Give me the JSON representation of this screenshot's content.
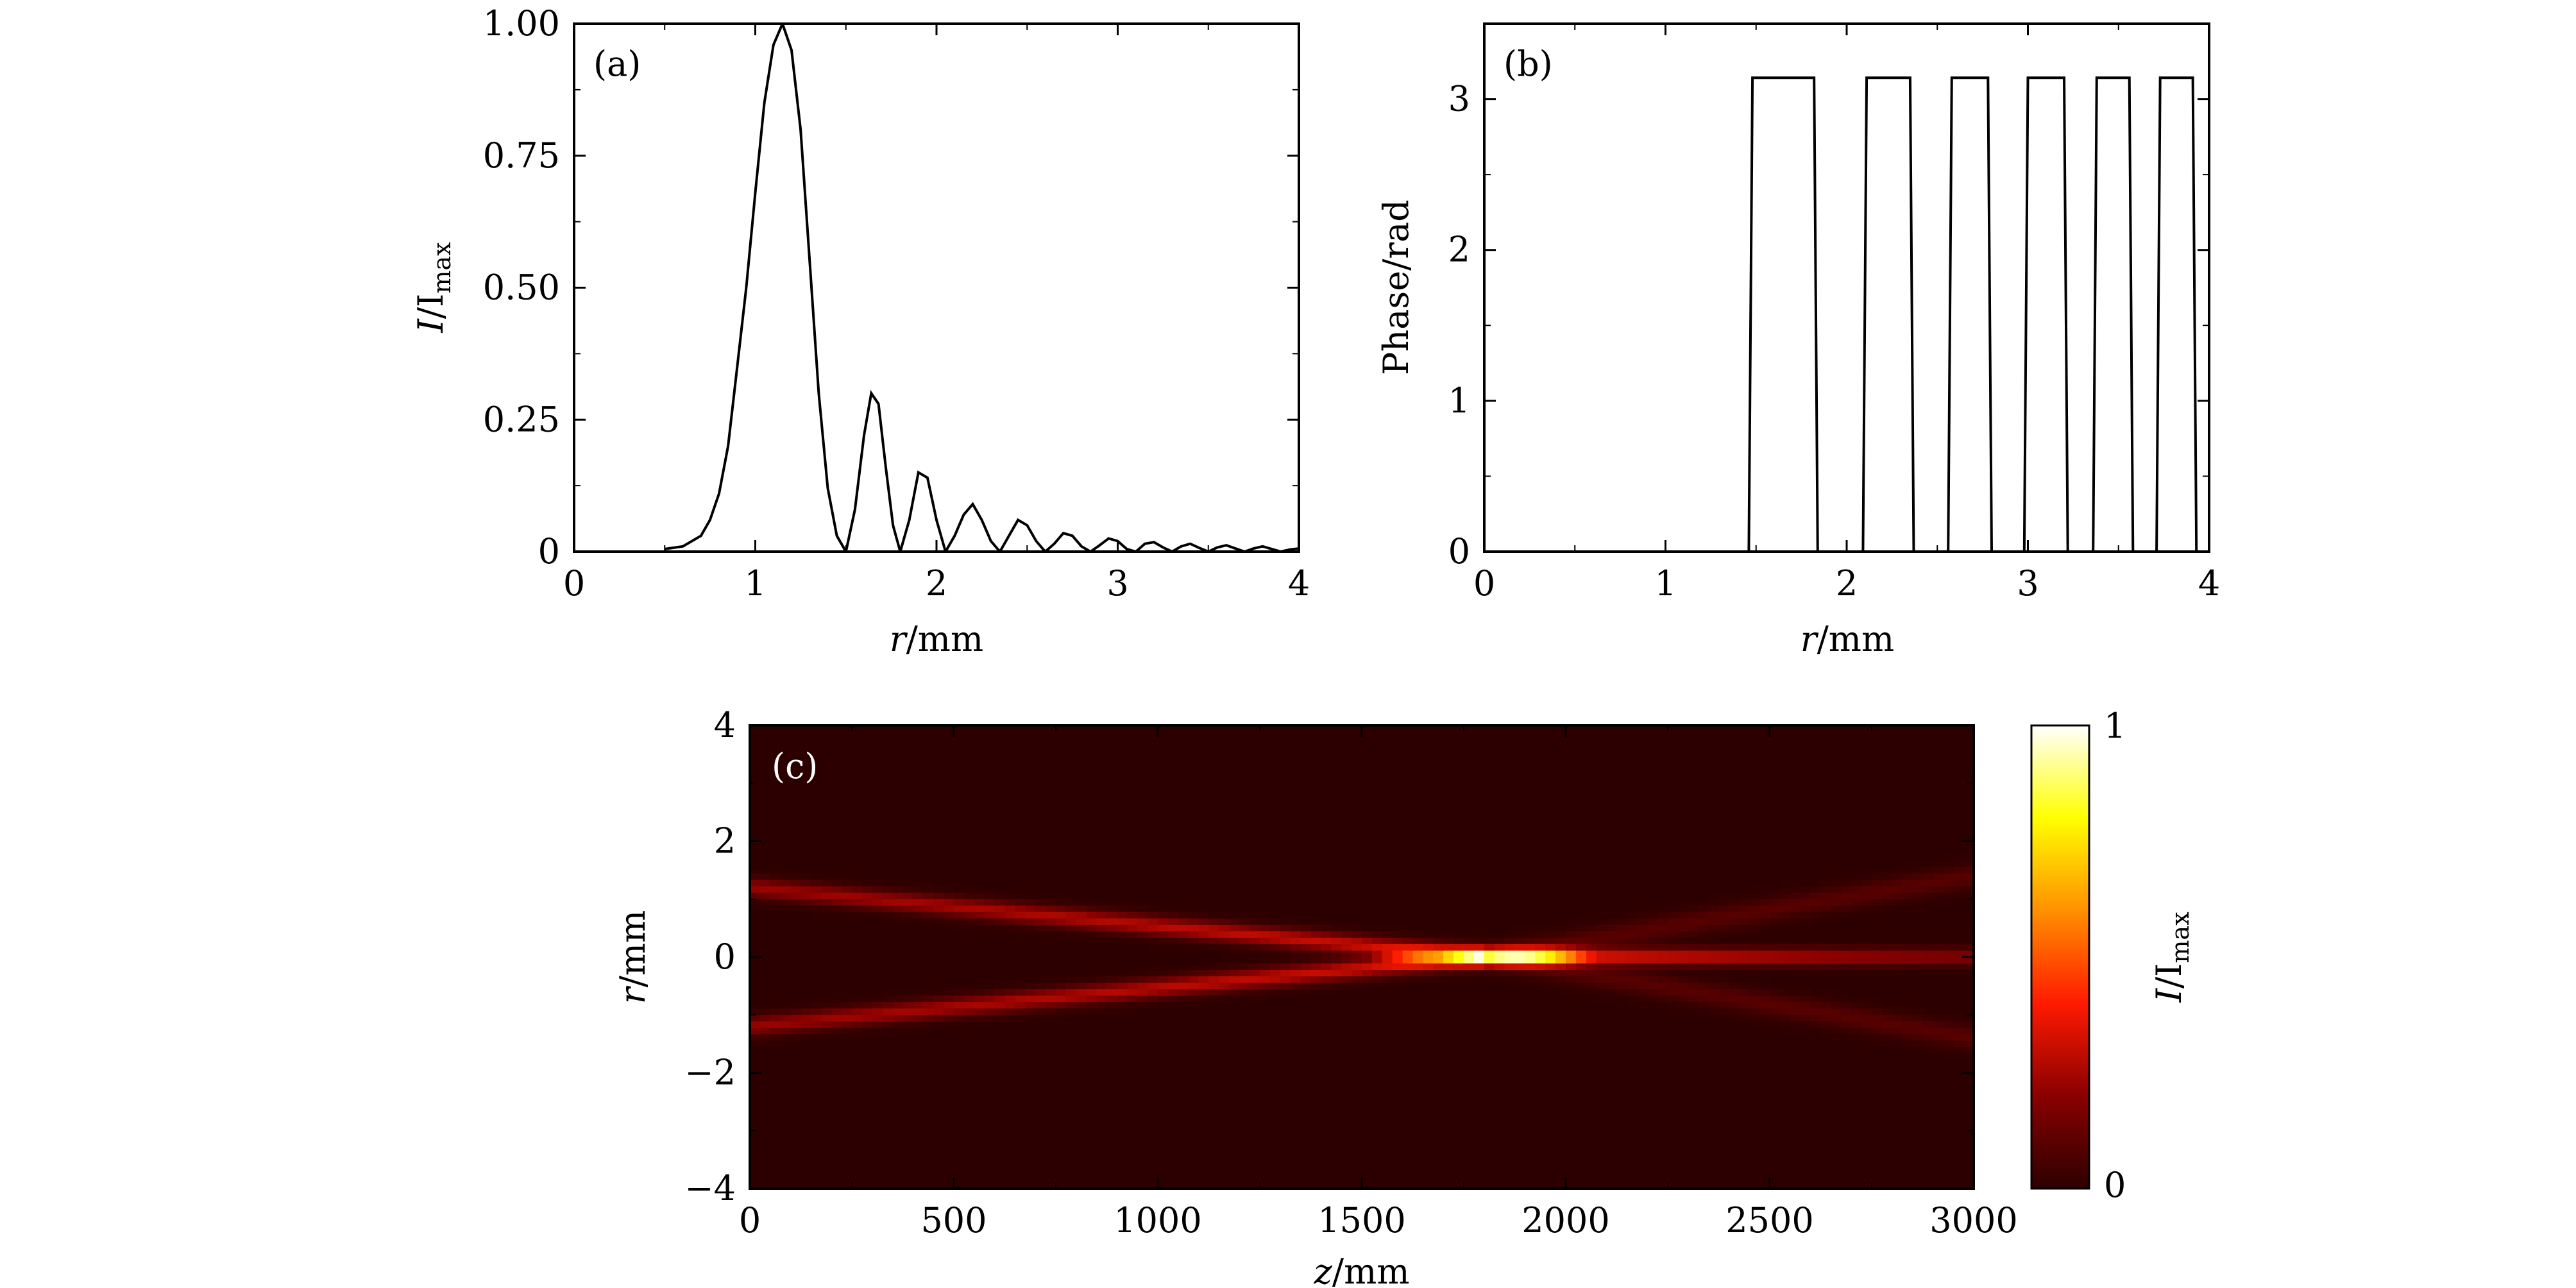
{
  "chart_data": [
    {
      "type": "line",
      "panel_label": "(a)",
      "xlabel_var": "r",
      "xlabel_unit": "/mm",
      "ylabel_var": "I",
      "ylabel_mid": "/I",
      "ylabel_sub": "max",
      "xlim": [
        0,
        4
      ],
      "ylim": [
        0,
        1
      ],
      "xticks": [
        0,
        1,
        2,
        3,
        4
      ],
      "xtick_labels": [
        "0",
        "1",
        "2",
        "3",
        "4"
      ],
      "yticks": [
        0,
        0.25,
        0.5,
        0.75,
        1
      ],
      "ytick_labels": [
        "0",
        "0.25",
        "0.50",
        "0.75",
        "1.00"
      ],
      "series": [
        {
          "x": [
            0.5,
            0.6,
            0.7,
            0.75,
            0.8,
            0.85,
            0.9,
            0.95,
            1.0,
            1.05,
            1.1,
            1.15,
            1.2,
            1.25,
            1.3,
            1.35,
            1.4,
            1.45,
            1.5,
            1.55,
            1.6,
            1.64,
            1.68,
            1.72,
            1.76,
            1.8,
            1.85,
            1.9,
            1.95,
            2.0,
            2.05,
            2.1,
            2.15,
            2.2,
            2.25,
            2.3,
            2.35,
            2.4,
            2.45,
            2.5,
            2.55,
            2.6,
            2.65,
            2.7,
            2.75,
            2.8,
            2.85,
            2.9,
            2.95,
            3.0,
            3.05,
            3.1,
            3.15,
            3.2,
            3.25,
            3.3,
            3.35,
            3.4,
            3.45,
            3.5,
            3.55,
            3.6,
            3.65,
            3.7,
            3.75,
            3.8,
            3.85,
            3.9,
            3.95,
            4.0
          ],
          "y": [
            0.005,
            0.01,
            0.03,
            0.06,
            0.11,
            0.2,
            0.35,
            0.5,
            0.68,
            0.85,
            0.96,
            1.0,
            0.95,
            0.8,
            0.55,
            0.3,
            0.12,
            0.03,
            0.0,
            0.08,
            0.22,
            0.3,
            0.28,
            0.16,
            0.05,
            0.0,
            0.06,
            0.15,
            0.14,
            0.06,
            0.0,
            0.03,
            0.07,
            0.09,
            0.06,
            0.02,
            0.0,
            0.03,
            0.06,
            0.05,
            0.02,
            0.0,
            0.015,
            0.035,
            0.03,
            0.01,
            0.0,
            0.012,
            0.025,
            0.02,
            0.005,
            0.0,
            0.015,
            0.018,
            0.008,
            0.0,
            0.01,
            0.015,
            0.007,
            0.0,
            0.008,
            0.012,
            0.006,
            0.0,
            0.006,
            0.01,
            0.005,
            0.0,
            0.004,
            0.006
          ]
        }
      ]
    },
    {
      "type": "line",
      "panel_label": "(b)",
      "xlabel_var": "r",
      "xlabel_unit": "/mm",
      "ylabel": "Phase/rad",
      "xlim": [
        0,
        4
      ],
      "ylim": [
        0,
        3.5
      ],
      "xticks": [
        0,
        1,
        2,
        3,
        4
      ],
      "xtick_labels": [
        "0",
        "1",
        "2",
        "3",
        "4"
      ],
      "yticks": [
        0,
        1,
        2,
        3
      ],
      "ytick_labels": [
        "0",
        "1",
        "2",
        "3"
      ],
      "series": [
        {
          "x": [
            0,
            1.46,
            1.48,
            1.82,
            1.84,
            2.09,
            2.11,
            2.35,
            2.37,
            2.56,
            2.58,
            2.78,
            2.8,
            2.98,
            3.0,
            3.2,
            3.22,
            3.36,
            3.38,
            3.56,
            3.58,
            3.71,
            3.73,
            3.91,
            3.93
          ],
          "y": [
            0,
            0,
            3.1416,
            3.1416,
            0,
            0,
            3.1416,
            3.1416,
            0,
            0,
            3.1416,
            3.1416,
            0,
            0,
            3.1416,
            3.1416,
            0,
            0,
            3.1416,
            3.1416,
            0,
            0,
            3.1416,
            3.1416,
            0
          ]
        }
      ]
    },
    {
      "type": "heatmap",
      "panel_label": "(c)",
      "xlabel_var": "z",
      "xlabel_unit": "/mm",
      "ylabel_var": "r",
      "ylabel_unit": "/mm",
      "xlim": [
        0,
        3000
      ],
      "ylim": [
        -4,
        4
      ],
      "xticks": [
        0,
        500,
        1000,
        1500,
        2000,
        2500,
        3000
      ],
      "xtick_labels": [
        "0",
        "500",
        "1000",
        "1500",
        "2000",
        "2500",
        "3000"
      ],
      "yticks": [
        -4,
        -2,
        0,
        2,
        4
      ],
      "ytick_labels": [
        "−4",
        "−2",
        "0",
        "2",
        "4"
      ],
      "field": {
        "ring_r_start": 1.2,
        "ring_r_end": 0.0,
        "ring_z_converge": 1800,
        "focus_center_z": 1880,
        "focus_half_width_z": 230,
        "focus_peak": 1.0,
        "tail_z_end": 3000,
        "tail_level": 0.35
      },
      "colorbar": {
        "label_var": "I",
        "label_mid": "/I",
        "label_sub": "max",
        "min_label": "0",
        "max_label": "1",
        "colormap": "hot",
        "colors": [
          "#2d0000",
          "#8a0000",
          "#ff1a00",
          "#ff9000",
          "#ffff00",
          "#ffffff"
        ]
      }
    }
  ]
}
